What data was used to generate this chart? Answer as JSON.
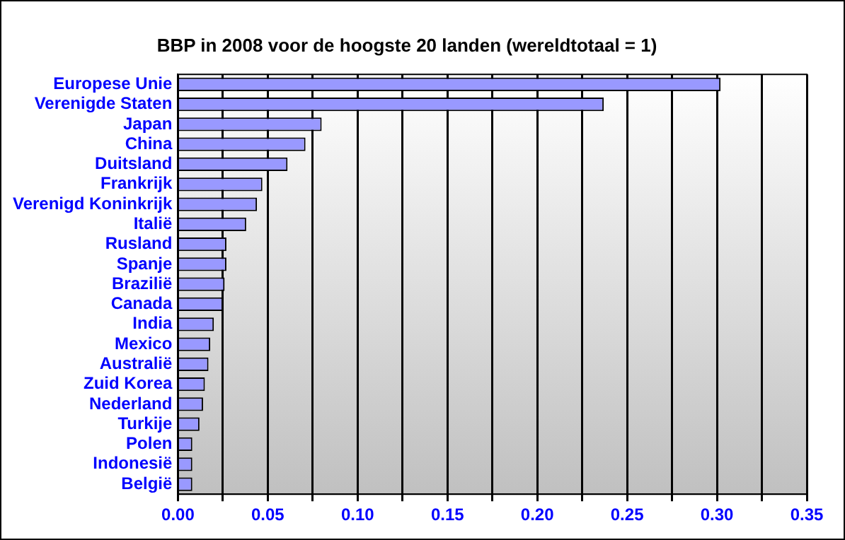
{
  "chart_data": {
    "type": "bar",
    "orientation": "horizontal",
    "title": "BBP in 2008 voor de hoogste 20 landen (wereldtotaal = 1)",
    "categories": [
      "Europese Unie",
      "Verenigde Staten",
      "Japan",
      "China",
      "Duitsland",
      "Frankrijk",
      "Verenigd Koninkrijk",
      "Italië",
      "Rusland",
      "Spanje",
      "Brazilië",
      "Canada",
      "India",
      "Mexico",
      "Australië",
      "Zuid Korea",
      "Nederland",
      "Turkije",
      "Polen",
      "Indonesië",
      "België"
    ],
    "values": [
      0.302,
      0.237,
      0.08,
      0.071,
      0.061,
      0.047,
      0.044,
      0.038,
      0.027,
      0.027,
      0.026,
      0.025,
      0.02,
      0.018,
      0.017,
      0.015,
      0.014,
      0.012,
      0.008,
      0.008,
      0.008
    ],
    "color": "#9999ff",
    "xlim": [
      0,
      0.35
    ],
    "xticks": [
      {
        "value": 0,
        "label": "0.00"
      },
      {
        "value": 0.025,
        "label": null
      },
      0.05,
      {
        "value": 0.075,
        "label": null
      },
      {
        "value": 0.1,
        "label": "0.10"
      },
      {
        "value": 0.125,
        "label": null
      },
      0.15,
      {
        "value": 0.175,
        "label": null
      },
      {
        "value": 0.2,
        "label": "0.20"
      },
      {
        "value": 0.225,
        "label": null
      },
      0.25,
      {
        "value": 0.275,
        "label": null
      },
      {
        "value": 0.3,
        "label": "0.30"
      },
      {
        "value": 0.325,
        "label": null
      },
      0.35
    ],
    "grid": "x",
    "legend": false
  }
}
